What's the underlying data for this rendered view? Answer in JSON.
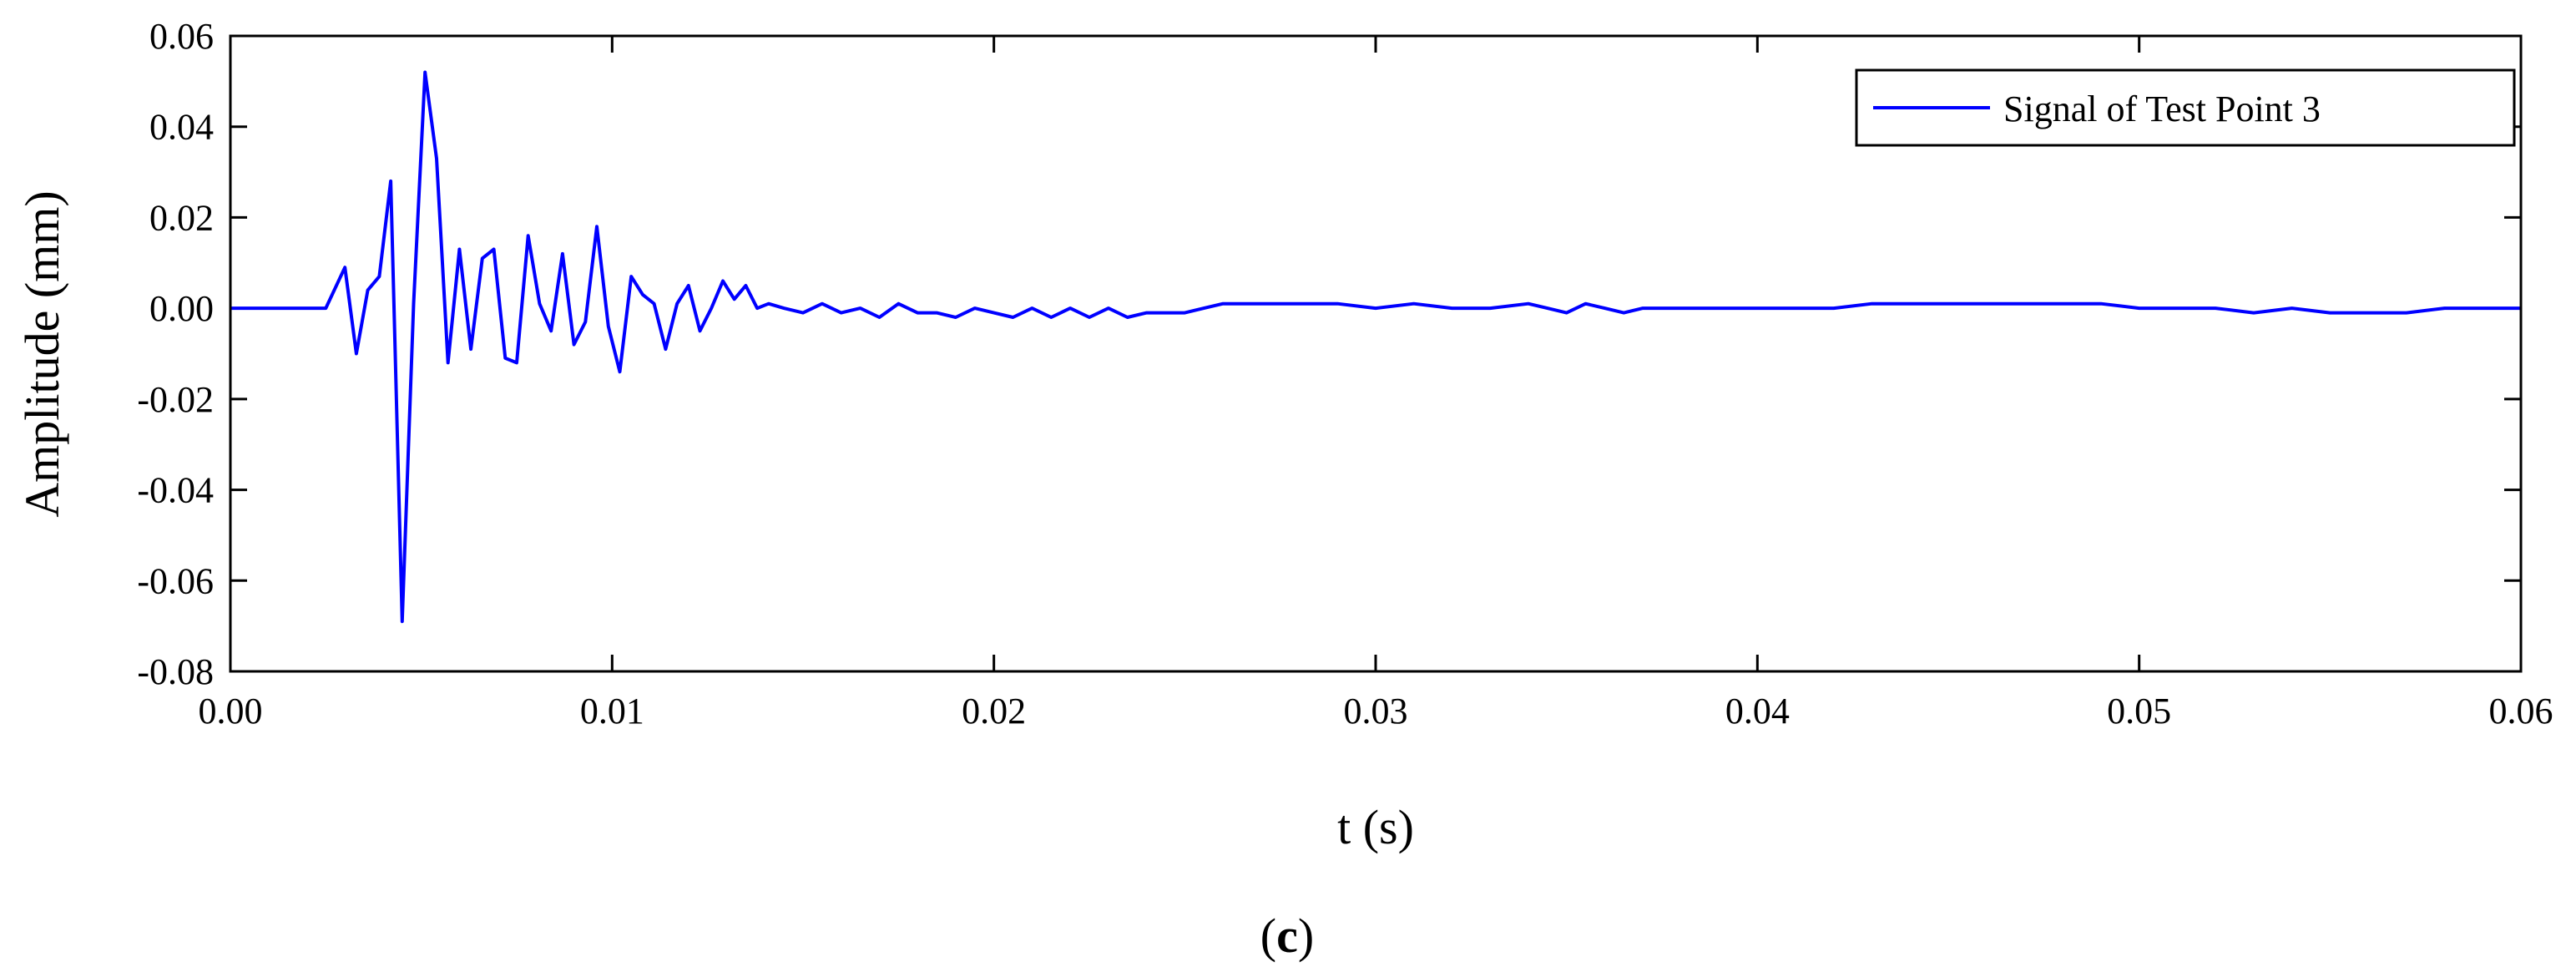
{
  "chart_data": {
    "type": "line",
    "title": "",
    "xlabel": "t (s)",
    "ylabel": "Amplitude (mm)",
    "xlim": [
      0,
      0.06
    ],
    "ylim": [
      -0.08,
      0.06
    ],
    "xticks": [
      0,
      0.01,
      0.02,
      0.03,
      0.04,
      0.05,
      0.06
    ],
    "xtick_labels": [
      "0.00",
      "0.01",
      "0.02",
      "0.03",
      "0.04",
      "0.05",
      "0.06"
    ],
    "yticks": [
      -0.08,
      -0.06,
      -0.04,
      -0.02,
      0,
      0.02,
      0.04,
      0.06
    ],
    "ytick_labels": [
      "-0.08",
      "-0.06",
      "-0.04",
      "-0.02",
      "0.00",
      "0.02",
      "0.04",
      "0.06"
    ],
    "grid": false,
    "legend_position": "top-right",
    "series": [
      {
        "name": "Signal of Test Point 3",
        "color": "#0000ff",
        "x": [
          0,
          0.001,
          0.002,
          0.0025,
          0.003,
          0.0033,
          0.0036,
          0.0039,
          0.0042,
          0.0045,
          0.0048,
          0.0051,
          0.0054,
          0.0057,
          0.006,
          0.0063,
          0.0066,
          0.0069,
          0.0072,
          0.0075,
          0.0078,
          0.0081,
          0.0084,
          0.0087,
          0.009,
          0.0093,
          0.0096,
          0.0099,
          0.0102,
          0.0105,
          0.0108,
          0.0111,
          0.0114,
          0.0117,
          0.012,
          0.0123,
          0.0126,
          0.0129,
          0.0132,
          0.0135,
          0.0138,
          0.0141,
          0.0145,
          0.015,
          0.0155,
          0.016,
          0.0165,
          0.017,
          0.0175,
          0.018,
          0.0185,
          0.019,
          0.0195,
          0.02,
          0.0205,
          0.021,
          0.0215,
          0.022,
          0.0225,
          0.023,
          0.0235,
          0.024,
          0.0245,
          0.025,
          0.0255,
          0.026,
          0.027,
          0.028,
          0.029,
          0.03,
          0.031,
          0.032,
          0.033,
          0.034,
          0.0345,
          0.035,
          0.0355,
          0.036,
          0.0365,
          0.037,
          0.038,
          0.039,
          0.04,
          0.041,
          0.042,
          0.043,
          0.044,
          0.045,
          0.046,
          0.047,
          0.048,
          0.049,
          0.05,
          0.051,
          0.052,
          0.053,
          0.054,
          0.055,
          0.056,
          0.057,
          0.058,
          0.059,
          0.06
        ],
        "y": [
          0,
          0,
          0,
          0,
          0.009,
          -0.01,
          0.004,
          0.007,
          0.028,
          -0.069,
          0.001,
          0.052,
          0.033,
          -0.012,
          0.013,
          -0.009,
          0.011,
          0.013,
          -0.011,
          -0.012,
          0.016,
          0.001,
          -0.005,
          0.012,
          -0.008,
          -0.003,
          0.018,
          -0.004,
          -0.014,
          0.007,
          0.003,
          0.001,
          -0.009,
          0.001,
          0.005,
          -0.005,
          0,
          0.006,
          0.002,
          0.005,
          0,
          0.001,
          0,
          -0.001,
          0.001,
          -0.001,
          0,
          -0.002,
          0.001,
          -0.001,
          -0.001,
          -0.002,
          0,
          -0.001,
          -0.002,
          0,
          -0.002,
          0,
          -0.002,
          0,
          -0.002,
          -0.001,
          -0.001,
          -0.001,
          0,
          0.001,
          0.001,
          0.001,
          0.001,
          0,
          0.001,
          0,
          0,
          0.001,
          0,
          -0.001,
          0.001,
          0,
          -0.001,
          0,
          0,
          0,
          0,
          0,
          0,
          0.001,
          0.001,
          0.001,
          0.001,
          0.001,
          0.001,
          0.001,
          0,
          0,
          0,
          -0.001,
          0,
          -0.001,
          -0.001,
          -0.001,
          0,
          0,
          0
        ]
      }
    ]
  },
  "caption": {
    "open": "(",
    "letter": "c",
    "close": ")"
  }
}
